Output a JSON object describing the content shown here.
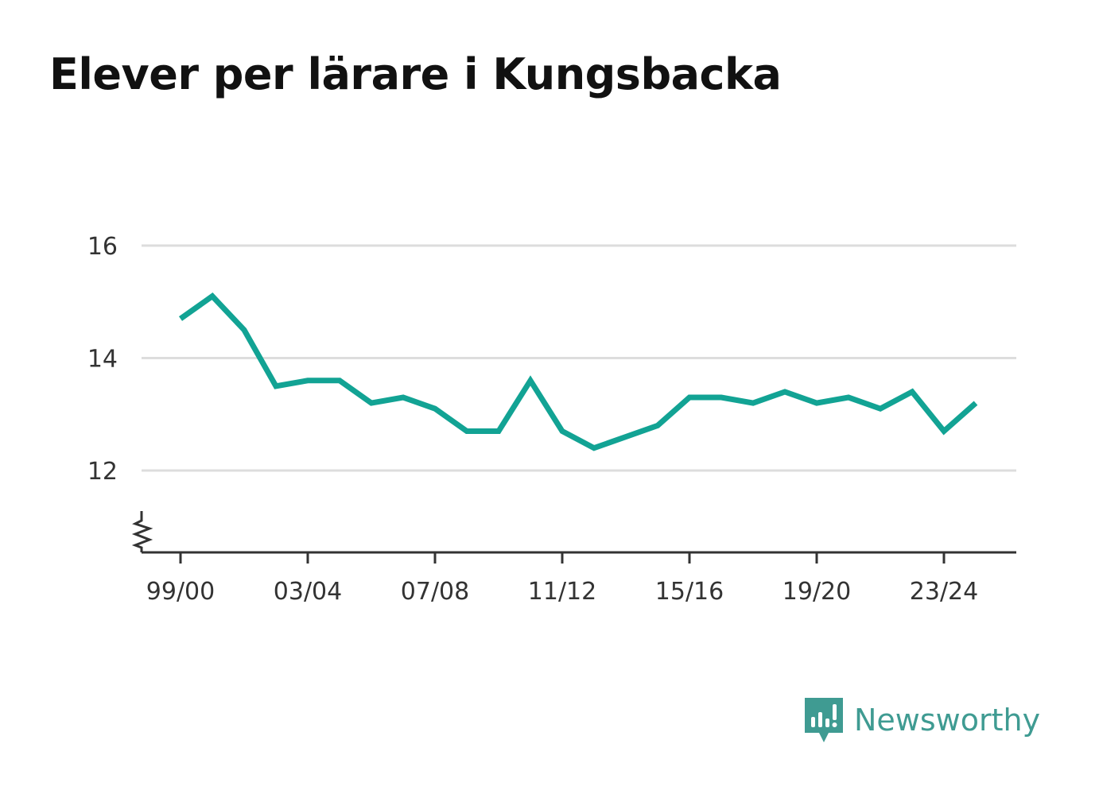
{
  "title": "Elever per lärare i Kungsbacka",
  "brand": {
    "name": "Newsworthy",
    "icon": "newsworthy-logo-icon",
    "color": "#3f9b92"
  },
  "chart_data": {
    "type": "line",
    "title": "Elever per lärare i Kungsbacka",
    "xlabel": "",
    "ylabel": "",
    "x": [
      "99/00",
      "00/01",
      "01/02",
      "02/03",
      "03/04",
      "04/05",
      "05/06",
      "06/07",
      "07/08",
      "08/09",
      "09/10",
      "10/11",
      "11/12",
      "12/13",
      "13/14",
      "14/15",
      "15/16",
      "16/17",
      "17/18",
      "18/19",
      "19/20",
      "20/21",
      "21/22",
      "22/23",
      "23/24",
      "24/25"
    ],
    "x_tick_labels": [
      "99/00",
      "03/04",
      "07/08",
      "11/12",
      "15/16",
      "19/20",
      "23/24"
    ],
    "series": [
      {
        "values": [
          14.7,
          15.1,
          14.5,
          13.5,
          13.6,
          13.6,
          13.2,
          13.3,
          13.1,
          12.7,
          12.7,
          13.6,
          12.7,
          12.4,
          12.6,
          12.8,
          13.3,
          13.3,
          13.2,
          13.4,
          13.2,
          13.3,
          13.1,
          13.4,
          12.7,
          13.2
        ],
        "color": "#12a394"
      }
    ],
    "y_ticks": [
      12,
      14,
      16
    ],
    "ylim": [
      10.55,
      16
    ],
    "axis_break": true,
    "grid": true,
    "colors": {
      "line": "#12a394",
      "grid": "#dddddd",
      "axis": "#333333"
    }
  }
}
